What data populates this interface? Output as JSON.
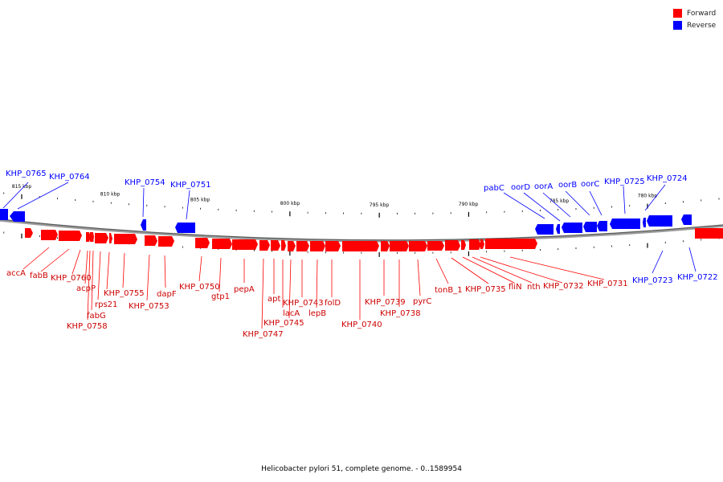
{
  "legend": {
    "forward": {
      "label": "Forward",
      "color": "#ff0000"
    },
    "reverse": {
      "label": "Reverse",
      "color": "#0000ff"
    }
  },
  "caption": "Helicobacter pylori 51, complete genome. - 0..1589954",
  "axis": {
    "ticks": [
      "815 kbp",
      "810 kbp",
      "805 kbp",
      "800 kbp",
      "795 kbp",
      "790 kbp",
      "785 kbp",
      "780 kbp"
    ]
  },
  "reverse_genes": [
    "KHP_0765",
    "KHP_0764",
    "KHP_0754",
    "KHP_0751",
    "pabC",
    "oorD",
    "oorA",
    "oorB",
    "oorC",
    "KHP_0725",
    "KHP_0724",
    "KHP_0723",
    "KHP_0722"
  ],
  "forward_genes": [
    "accA",
    "fabB",
    "KHP_0760",
    "acpP",
    "fabG",
    "KHP_0758",
    "rps21",
    "KHP_0755",
    "KHP_0753",
    "dapF",
    "KHP_0750",
    "gtp1",
    "pepA",
    "KHP_0747",
    "apt",
    "lacA",
    "KHP_0745",
    "KHP_0743",
    "lepB",
    "folD",
    "KHP_0740",
    "KHP_0739",
    "KHP_0738",
    "pyrC",
    "tonB_1",
    "KHP_0735",
    "fliN",
    "nth",
    "KHP_0732",
    "KHP_0731"
  ]
}
